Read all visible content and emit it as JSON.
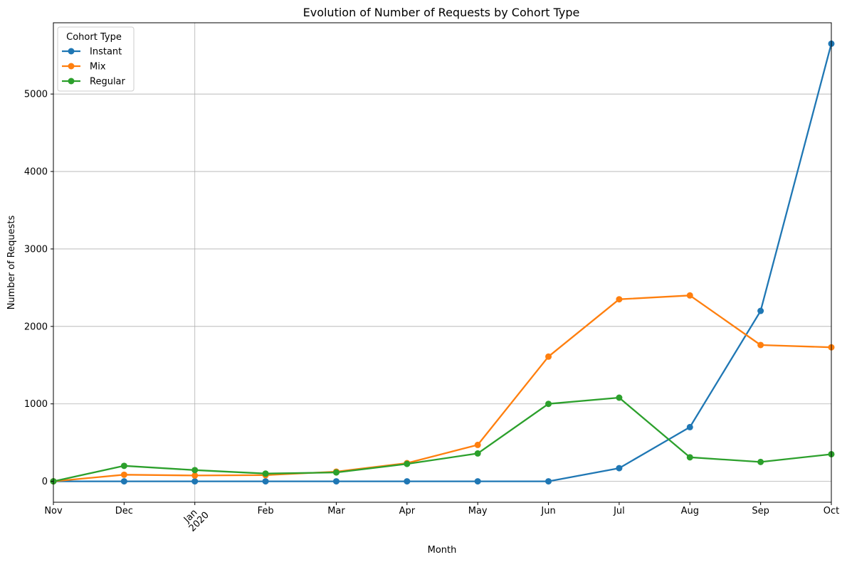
{
  "chart_data": {
    "type": "line",
    "title": "Evolution of Number of Requests by Cohort Type",
    "xlabel": "Month",
    "ylabel": "Number of Requests",
    "categories": [
      "Nov",
      "Dec",
      "Jan\n2020",
      "Feb",
      "Mar",
      "Apr",
      "May",
      "Jun",
      "Jul",
      "Aug",
      "Sep",
      "Oct"
    ],
    "ylim": [
      -270,
      5920
    ],
    "yticks": [
      0,
      1000,
      2000,
      3000,
      4000,
      5000
    ],
    "grid": true,
    "legend": {
      "title": "Cohort Type",
      "placement": "top-left"
    },
    "series": [
      {
        "name": "Instant",
        "color": "#1f77b4",
        "values": [
          0,
          0,
          0,
          0,
          0,
          0,
          0,
          0,
          170,
          700,
          2200,
          5650
        ]
      },
      {
        "name": "Mix",
        "color": "#ff7f0e",
        "values": [
          0,
          85,
          75,
          80,
          125,
          235,
          470,
          1610,
          2350,
          2400,
          1760,
          1730
        ]
      },
      {
        "name": "Regular",
        "color": "#2ca02c",
        "values": [
          0,
          200,
          145,
          100,
          115,
          225,
          360,
          1000,
          1080,
          310,
          250,
          350
        ]
      }
    ]
  }
}
